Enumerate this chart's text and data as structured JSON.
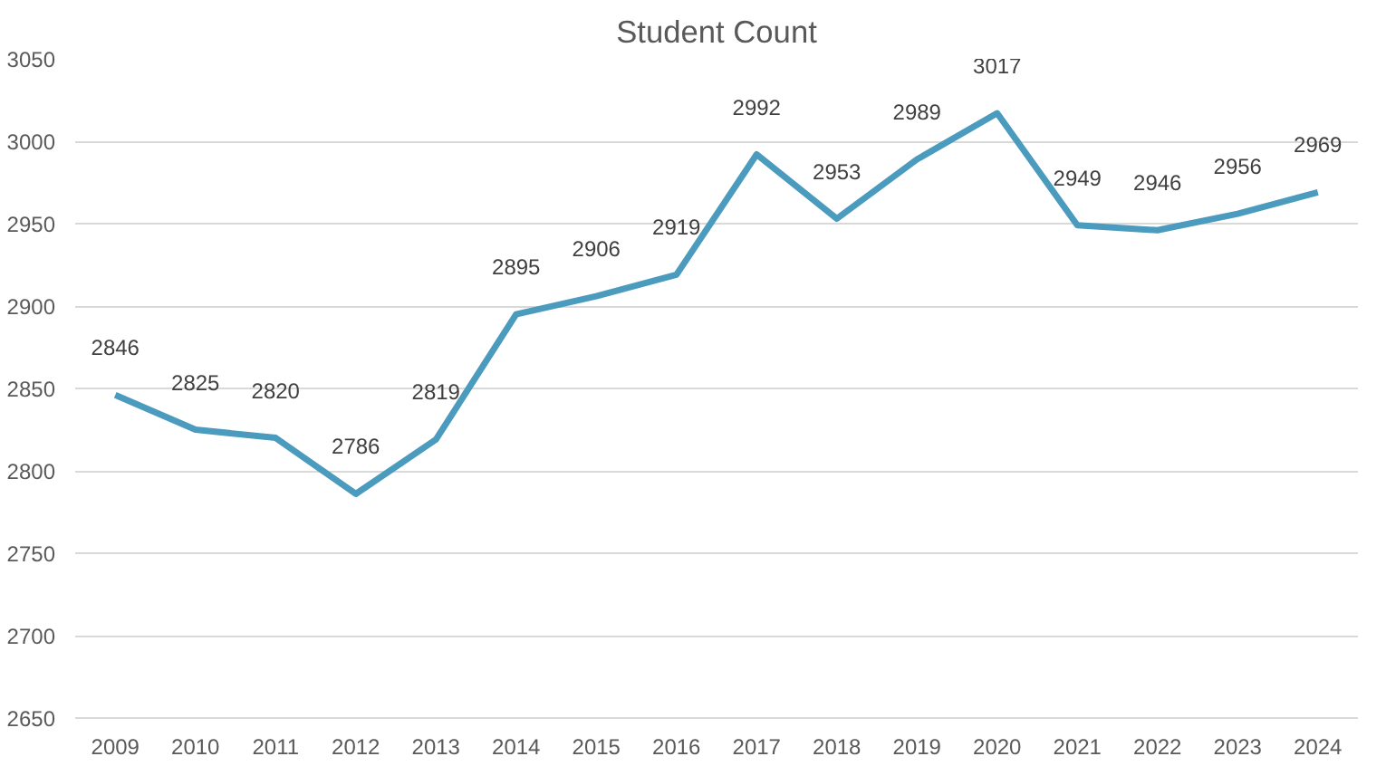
{
  "chart_data": {
    "type": "line",
    "title": "Student Count",
    "categories": [
      "2009",
      "2010",
      "2011",
      "2012",
      "2013",
      "2014",
      "2015",
      "2016",
      "2017",
      "2018",
      "2019",
      "2020",
      "2021",
      "2022",
      "2023",
      "2024"
    ],
    "series": [
      {
        "color": "#4a9bbd",
        "values": [
          2846,
          2825,
          2820,
          2786,
          2819,
          2895,
          2906,
          2919,
          2992,
          2953,
          2989,
          3017,
          2949,
          2946,
          2956,
          2969
        ]
      }
    ],
    "ylim": [
      2650,
      3050
    ],
    "yticks": [
      2650,
      2700,
      2750,
      2800,
      2850,
      2900,
      2950,
      3000,
      3050
    ],
    "grid": "y",
    "data_labels": true,
    "marker": "none",
    "line_style": "solid"
  }
}
